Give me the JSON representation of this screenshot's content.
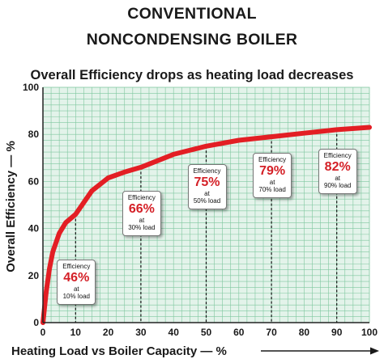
{
  "titles": {
    "line1": "CONVENTIONAL",
    "line2": "NONCONDENSING BOILER"
  },
  "chart_data": {
    "type": "line",
    "title": "Overall Efficiency drops as heating load decreases",
    "xlabel": "Heating Load vs Boiler Capacity — %",
    "ylabel": "Overall Efficiency — %",
    "xlim": [
      0,
      100
    ],
    "ylim": [
      0,
      100
    ],
    "x_ticks": [
      0,
      10,
      20,
      30,
      40,
      50,
      60,
      70,
      80,
      90,
      100
    ],
    "y_ticks": [
      0,
      20,
      40,
      60,
      80,
      100
    ],
    "grid": true,
    "series": [
      {
        "x": [
          0,
          1,
          2,
          3,
          5,
          7,
          10,
          15,
          20,
          25,
          30,
          40,
          50,
          60,
          70,
          80,
          90,
          100
        ],
        "y": [
          0,
          13,
          23,
          30,
          38,
          42.5,
          46,
          56,
          61.5,
          64,
          66,
          71.5,
          75,
          77.5,
          79,
          80.5,
          82,
          83
        ],
        "color": "#e31e24"
      }
    ],
    "annotations": [
      {
        "label": "Efficiency",
        "value": "46%",
        "at": "at",
        "load": "10% load",
        "x": 10,
        "y": 46
      },
      {
        "label": "Efficiency",
        "value": "66%",
        "at": "at",
        "load": "30% load",
        "x": 30,
        "y": 66
      },
      {
        "label": "Efficiency",
        "value": "75%",
        "at": "at",
        "load": "50% load",
        "x": 50,
        "y": 75
      },
      {
        "label": "Efficiency",
        "value": "79%",
        "at": "at",
        "load": "70% load",
        "x": 70,
        "y": 79
      },
      {
        "label": "Efficiency",
        "value": "82%",
        "at": "at",
        "load": "90% load",
        "x": 90,
        "y": 82
      }
    ],
    "colors": {
      "plot_background": "#e3f3ea",
      "grid": "#7fc79f",
      "curve": "#e31e24",
      "callout_value": "#d42027"
    }
  }
}
